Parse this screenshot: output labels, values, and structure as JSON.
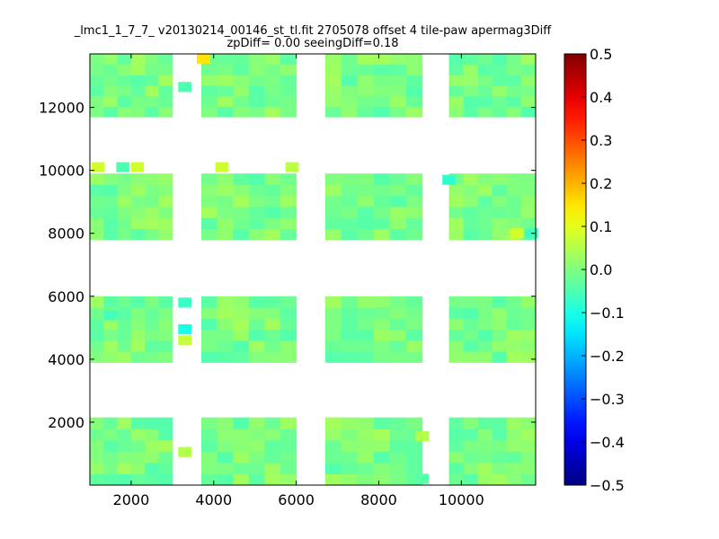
{
  "chart_data": {
    "type": "heatmap",
    "title_line1": "_lmc1_1_7_7_ v20130214_00146_st_tl.fit 2705078 offset 4 tile-paw apermag3Diff",
    "title_line2": "zpDiff= 0.00 seeingDiff=0.18",
    "xlabel": "",
    "ylabel": "",
    "xlim": [
      1000,
      11800
    ],
    "ylim": [
      0,
      13700
    ],
    "x_ticks": [
      2000,
      4000,
      6000,
      8000,
      10000
    ],
    "y_ticks": [
      2000,
      4000,
      6000,
      8000,
      10000,
      12000
    ],
    "colorbar": {
      "colormap": "jet",
      "vmin": -0.5,
      "vmax": 0.5,
      "ticks": [
        "0.5",
        "0.4",
        "0.3",
        "0.2",
        "0.1",
        "0.0",
        "−0.1",
        "−0.2",
        "−0.3",
        "−0.4",
        "−0.5"
      ]
    },
    "grid": false,
    "typical_value": 0.0,
    "detectors": [
      {
        "x": [
          1000,
          3000
        ],
        "y": [
          11700,
          13700
        ]
      },
      {
        "x": [
          3700,
          6000
        ],
        "y": [
          11700,
          13700
        ]
      },
      {
        "x": [
          6700,
          9050
        ],
        "y": [
          11700,
          13700
        ]
      },
      {
        "x": [
          9700,
          11800
        ],
        "y": [
          11700,
          13700
        ]
      },
      {
        "x": [
          1000,
          3000
        ],
        "y": [
          7800,
          9900
        ]
      },
      {
        "x": [
          3700,
          6000
        ],
        "y": [
          7800,
          9900
        ]
      },
      {
        "x": [
          6700,
          9050
        ],
        "y": [
          7800,
          9900
        ]
      },
      {
        "x": [
          9700,
          11800
        ],
        "y": [
          7800,
          9900
        ]
      },
      {
        "x": [
          1000,
          3000
        ],
        "y": [
          3900,
          6000
        ]
      },
      {
        "x": [
          3700,
          6000
        ],
        "y": [
          3900,
          6000
        ]
      },
      {
        "x": [
          6700,
          9050
        ],
        "y": [
          3900,
          6000
        ]
      },
      {
        "x": [
          9700,
          11800
        ],
        "y": [
          3900,
          6000
        ]
      },
      {
        "x": [
          1000,
          3000
        ],
        "y": [
          0,
          2150
        ]
      },
      {
        "x": [
          3700,
          6000
        ],
        "y": [
          0,
          2150
        ]
      },
      {
        "x": [
          6700,
          9050
        ],
        "y": [
          0,
          2150
        ]
      },
      {
        "x": [
          9700,
          11800
        ],
        "y": [
          0,
          2150
        ]
      }
    ],
    "special_cells": [
      {
        "x": 3750,
        "y": 13550,
        "value": 0.15
      },
      {
        "x": 3300,
        "y": 12650,
        "value": -0.05
      },
      {
        "x": 1200,
        "y": 10100,
        "value": 0.08
      },
      {
        "x": 1800,
        "y": 10100,
        "value": -0.05
      },
      {
        "x": 2150,
        "y": 10100,
        "value": 0.08
      },
      {
        "x": 4200,
        "y": 10100,
        "value": 0.08
      },
      {
        "x": 5900,
        "y": 10100,
        "value": 0.06
      },
      {
        "x": 9700,
        "y": 9700,
        "value": -0.08
      },
      {
        "x": 11700,
        "y": 8000,
        "value": -0.06
      },
      {
        "x": 11350,
        "y": 8000,
        "value": 0.08
      },
      {
        "x": 3300,
        "y": 5800,
        "value": -0.07
      },
      {
        "x": 3300,
        "y": 4950,
        "value": -0.1
      },
      {
        "x": 3300,
        "y": 4600,
        "value": 0.07
      },
      {
        "x": 1500,
        "y": 5400,
        "value": -0.06
      },
      {
        "x": 3300,
        "y": 1050,
        "value": 0.05
      },
      {
        "x": 9050,
        "y": 1550,
        "value": 0.05
      },
      {
        "x": 9050,
        "y": 200,
        "value": -0.04
      }
    ]
  }
}
